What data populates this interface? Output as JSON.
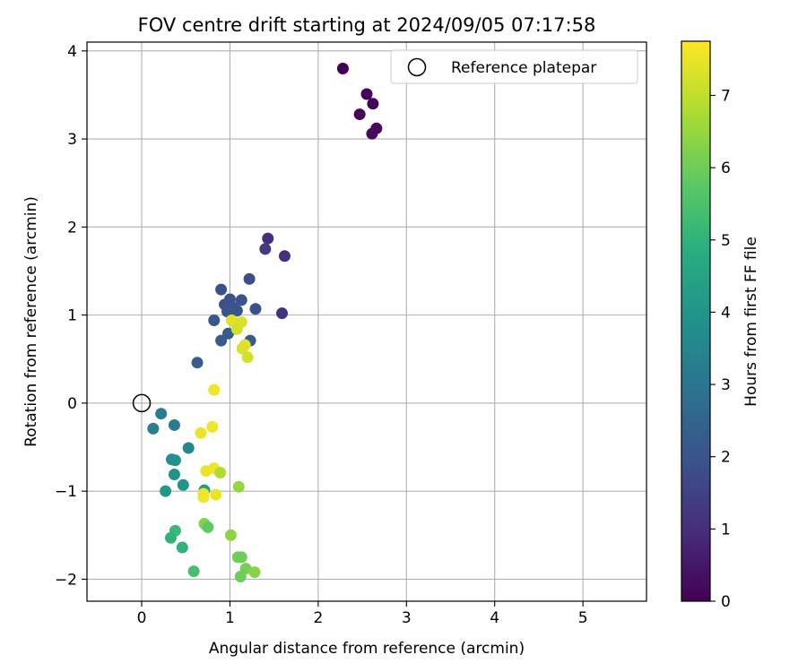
{
  "chart_data": {
    "type": "scatter",
    "title": "FOV centre drift starting at 2024/09/05 07:17:58",
    "xlabel": "Angular distance from reference (arcmin)",
    "ylabel": "Rotation from reference (arcmin)",
    "xlim": [
      -0.62,
      5.72
    ],
    "ylim": [
      -2.25,
      4.1
    ],
    "xticks": [
      0,
      1,
      2,
      3,
      4,
      5
    ],
    "yticks": [
      -2,
      -1,
      0,
      1,
      2,
      3,
      4
    ],
    "grid": true,
    "legend": {
      "position": "top-right",
      "entries": [
        "Reference platepar"
      ]
    },
    "reference_point": {
      "x": 0,
      "y": 0,
      "label": "Reference platepar"
    },
    "colorbar": {
      "label": "Hours from first FF file",
      "colormap": "viridis",
      "range": [
        0,
        7.75
      ],
      "ticks": [
        0,
        1,
        2,
        3,
        4,
        5,
        6,
        7
      ]
    },
    "points": [
      {
        "x": 2.28,
        "y": 3.8,
        "c": 0.0
      },
      {
        "x": 2.55,
        "y": 3.51,
        "c": 0.05
      },
      {
        "x": 2.62,
        "y": 3.4,
        "c": 0.1
      },
      {
        "x": 2.47,
        "y": 3.28,
        "c": 0.15
      },
      {
        "x": 2.66,
        "y": 3.12,
        "c": 0.2
      },
      {
        "x": 2.61,
        "y": 3.06,
        "c": 0.25
      },
      {
        "x": 1.43,
        "y": 1.87,
        "c": 1.0
      },
      {
        "x": 1.62,
        "y": 1.67,
        "c": 1.05
      },
      {
        "x": 1.4,
        "y": 1.75,
        "c": 1.3
      },
      {
        "x": 1.59,
        "y": 1.02,
        "c": 1.1
      },
      {
        "x": 1.22,
        "y": 1.41,
        "c": 1.8
      },
      {
        "x": 0.9,
        "y": 1.29,
        "c": 1.9
      },
      {
        "x": 1.0,
        "y": 1.18,
        "c": 1.9
      },
      {
        "x": 1.13,
        "y": 1.17,
        "c": 2.0
      },
      {
        "x": 0.94,
        "y": 1.12,
        "c": 1.9
      },
      {
        "x": 1.03,
        "y": 1.09,
        "c": 2.0
      },
      {
        "x": 1.29,
        "y": 1.07,
        "c": 1.9
      },
      {
        "x": 0.97,
        "y": 1.04,
        "c": 2.1
      },
      {
        "x": 1.08,
        "y": 1.05,
        "c": 2.1
      },
      {
        "x": 0.82,
        "y": 0.94,
        "c": 2.1
      },
      {
        "x": 0.98,
        "y": 0.79,
        "c": 2.2
      },
      {
        "x": 1.23,
        "y": 0.71,
        "c": 2.2
      },
      {
        "x": 0.9,
        "y": 0.71,
        "c": 2.2
      },
      {
        "x": 0.63,
        "y": 0.46,
        "c": 2.3
      },
      {
        "x": 1.02,
        "y": 0.94,
        "c": 7.4
      },
      {
        "x": 1.13,
        "y": 0.92,
        "c": 7.3
      },
      {
        "x": 1.08,
        "y": 0.84,
        "c": 7.2
      },
      {
        "x": 1.17,
        "y": 0.66,
        "c": 7.4
      },
      {
        "x": 1.14,
        "y": 0.62,
        "c": 7.3
      },
      {
        "x": 1.2,
        "y": 0.52,
        "c": 7.2
      },
      {
        "x": 0.82,
        "y": 0.15,
        "c": 7.6
      },
      {
        "x": 0.8,
        "y": -0.27,
        "c": 7.6
      },
      {
        "x": 0.67,
        "y": -0.34,
        "c": 7.5
      },
      {
        "x": 0.22,
        "y": -0.12,
        "c": 3.2
      },
      {
        "x": 0.13,
        "y": -0.29,
        "c": 3.3
      },
      {
        "x": 0.37,
        "y": -0.25,
        "c": 3.2
      },
      {
        "x": 0.53,
        "y": -0.51,
        "c": 3.6
      },
      {
        "x": 0.34,
        "y": -0.64,
        "c": 3.8
      },
      {
        "x": 0.38,
        "y": -0.65,
        "c": 3.9
      },
      {
        "x": 0.37,
        "y": -0.81,
        "c": 3.9
      },
      {
        "x": 0.47,
        "y": -0.93,
        "c": 4.0
      },
      {
        "x": 0.27,
        "y": -1.0,
        "c": 4.1
      },
      {
        "x": 0.71,
        "y": -0.99,
        "c": 4.2
      },
      {
        "x": 0.73,
        "y": -0.77,
        "c": 7.5
      },
      {
        "x": 0.82,
        "y": -0.74,
        "c": 7.6
      },
      {
        "x": 0.89,
        "y": -0.79,
        "c": 6.8
      },
      {
        "x": 0.7,
        "y": -1.03,
        "c": 7.6
      },
      {
        "x": 0.7,
        "y": -1.07,
        "c": 7.6
      },
      {
        "x": 0.84,
        "y": -1.04,
        "c": 7.5
      },
      {
        "x": 1.1,
        "y": -0.95,
        "c": 6.5
      },
      {
        "x": 0.38,
        "y": -1.45,
        "c": 5.2
      },
      {
        "x": 0.33,
        "y": -1.53,
        "c": 5.0
      },
      {
        "x": 0.46,
        "y": -1.64,
        "c": 5.0
      },
      {
        "x": 0.71,
        "y": -1.37,
        "c": 6.3
      },
      {
        "x": 0.75,
        "y": -1.41,
        "c": 5.8
      },
      {
        "x": 1.01,
        "y": -1.5,
        "c": 6.4
      },
      {
        "x": 1.09,
        "y": -1.75,
        "c": 6.1
      },
      {
        "x": 1.13,
        "y": -1.75,
        "c": 6.0
      },
      {
        "x": 1.18,
        "y": -1.88,
        "c": 6.1
      },
      {
        "x": 0.59,
        "y": -1.91,
        "c": 5.4
      },
      {
        "x": 1.28,
        "y": -1.92,
        "c": 6.3
      },
      {
        "x": 1.12,
        "y": -1.97,
        "c": 6.0
      }
    ]
  }
}
